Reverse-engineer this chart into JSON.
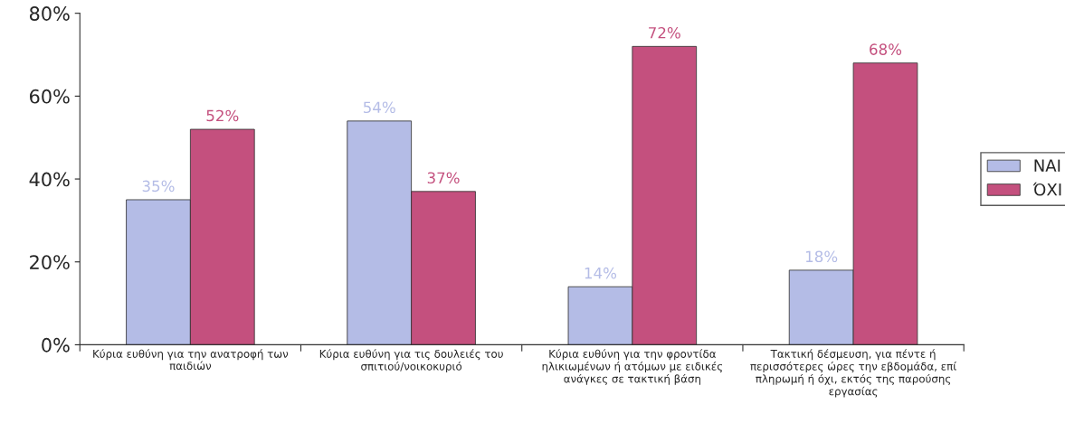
{
  "chart_data": {
    "type": "bar",
    "categories": [
      "Κύρια ευθύνη για την ανατροφή των παιδιών",
      "Κύρια ευθύνη για τις δουλειές του σπιτιού/νοικοκυριό",
      "Κύρια ευθύνη για την φροντίδα ηλικιωμένων ή ατόμων με ειδικές ανάγκες σε τακτική βάση",
      "Τακτική δέσμευση, για πέντε ή περισσότερες ώρες την εβδομάδα, επί πληρωμή ή όχι, εκτός της παρούσης εργασίας"
    ],
    "series": [
      {
        "name": "ΝΑΙ",
        "color": "#b4bce6",
        "values": [
          35,
          54,
          14,
          18
        ],
        "value_labels": [
          "35%",
          "54%",
          "14%",
          "18%"
        ]
      },
      {
        "name": "ΌΧΙ",
        "color": "#c4507e",
        "values": [
          52,
          37,
          72,
          68
        ],
        "value_labels": [
          "52%",
          "37%",
          "72%",
          "68%"
        ]
      }
    ],
    "ylim": [
      0,
      80
    ],
    "yticks": [
      {
        "value": 0,
        "label": "0%"
      },
      {
        "value": 20,
        "label": "20%"
      },
      {
        "value": 40,
        "label": "40%"
      },
      {
        "value": 60,
        "label": "60%"
      },
      {
        "value": 80,
        "label": "80%"
      }
    ],
    "grid": false,
    "legend": "right"
  }
}
